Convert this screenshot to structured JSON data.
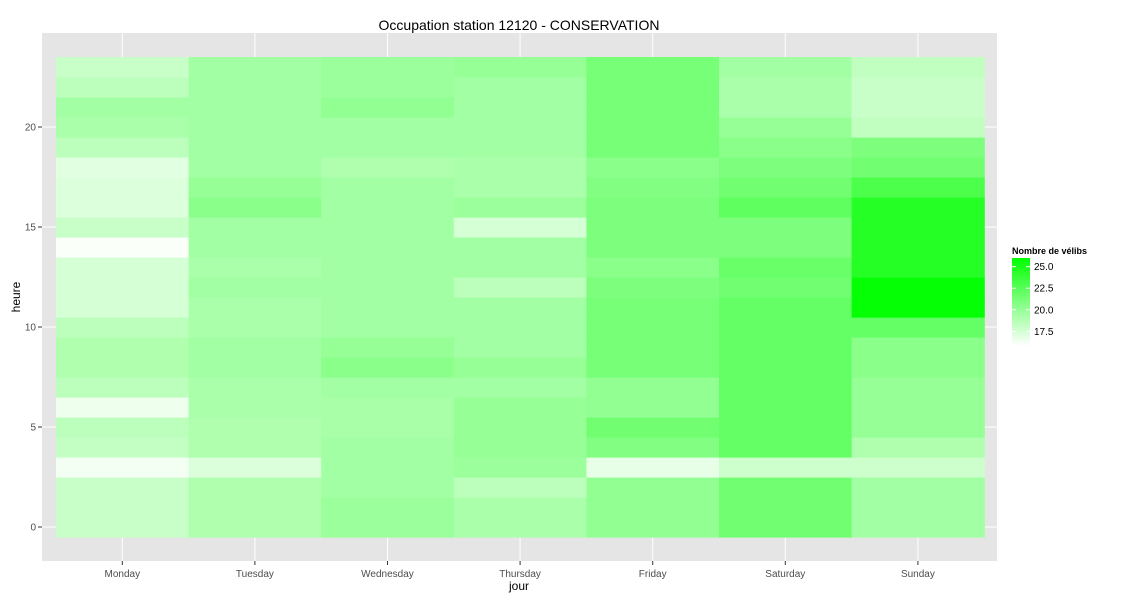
{
  "chart_data": {
    "type": "heatmap",
    "title": "Occupation station 12120 - CONSERVATION",
    "xlabel": "jour",
    "ylabel": "heure",
    "x_categories": [
      "Monday",
      "Tuesday",
      "Wednesday",
      "Thursday",
      "Friday",
      "Saturday",
      "Sunday"
    ],
    "y_values": [
      0,
      1,
      2,
      3,
      4,
      5,
      6,
      7,
      8,
      9,
      10,
      11,
      12,
      13,
      14,
      15,
      16,
      17,
      18,
      19,
      20,
      21,
      22,
      23
    ],
    "y_ticks": [
      0,
      5,
      10,
      15,
      20
    ],
    "ylim": [
      -0.5,
      23.5
    ],
    "values": [
      [
        18.0,
        19.0,
        19.8,
        19.2,
        20.2,
        21.5,
        19.5
      ],
      [
        18.0,
        19.0,
        19.8,
        19.2,
        20.2,
        21.5,
        19.5
      ],
      [
        18.0,
        19.0,
        19.5,
        18.5,
        20.2,
        21.5,
        19.5
      ],
      [
        16.3,
        17.3,
        19.5,
        19.8,
        16.8,
        17.8,
        17.8
      ],
      [
        18.2,
        19.0,
        19.5,
        20.0,
        20.8,
        22.0,
        19.0
      ],
      [
        18.5,
        19.0,
        19.3,
        20.0,
        21.5,
        22.0,
        20.0
      ],
      [
        16.5,
        19.2,
        19.3,
        20.0,
        20.2,
        22.0,
        20.0
      ],
      [
        18.5,
        19.2,
        19.5,
        19.5,
        20.2,
        22.0,
        20.0
      ],
      [
        19.0,
        19.5,
        20.5,
        20.0,
        21.2,
        22.0,
        20.5
      ],
      [
        19.0,
        19.5,
        20.0,
        19.5,
        21.2,
        22.0,
        20.5
      ],
      [
        18.5,
        19.2,
        19.5,
        19.5,
        21.2,
        22.0,
        22.0
      ],
      [
        17.5,
        19.2,
        19.5,
        19.5,
        21.2,
        22.0,
        25.8
      ],
      [
        17.5,
        19.5,
        19.5,
        18.5,
        21.0,
        21.5,
        25.8
      ],
      [
        17.5,
        19.2,
        19.5,
        19.5,
        20.5,
        21.8,
        24.5
      ],
      [
        16.0,
        19.5,
        19.5,
        19.5,
        21.0,
        21.0,
        24.5
      ],
      [
        18.0,
        19.5,
        19.5,
        17.5,
        21.0,
        21.0,
        24.5
      ],
      [
        17.2,
        20.5,
        19.5,
        19.8,
        21.0,
        22.2,
        24.5
      ],
      [
        17.2,
        20.0,
        19.5,
        19.2,
        20.8,
        21.5,
        23.0
      ],
      [
        17.0,
        19.5,
        19.0,
        19.2,
        20.5,
        21.0,
        21.5
      ],
      [
        18.5,
        19.5,
        19.5,
        19.5,
        21.2,
        20.5,
        21.0
      ],
      [
        19.2,
        19.5,
        19.5,
        19.5,
        21.2,
        20.0,
        18.3
      ],
      [
        19.5,
        19.5,
        20.2,
        19.5,
        21.2,
        19.2,
        18.0
      ],
      [
        18.5,
        19.5,
        19.8,
        19.5,
        21.2,
        19.2,
        18.0
      ],
      [
        18.0,
        19.5,
        19.8,
        20.0,
        21.2,
        19.5,
        18.3
      ]
    ],
    "legend_title": "Nombre de vélibs",
    "legend_breaks": [
      "25.0",
      "22.5",
      "20.0",
      "17.5"
    ],
    "legend_placement": "right",
    "color_min": "#ffffff",
    "color_max": "#00ff00",
    "value_range": [
      15.8,
      26.0
    ],
    "panel_background": "#e5e5e5",
    "grid_color": "#ffffff",
    "grid": true
  }
}
